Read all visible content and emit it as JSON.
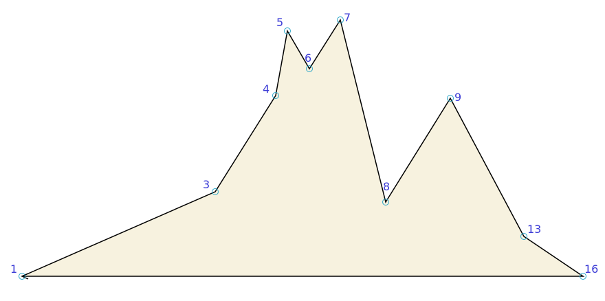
{
  "diagram": {
    "type": "polygon",
    "colors": {
      "fill": "#f7f2df",
      "stroke": "#000000",
      "vertex_marker": "#2aa6c8",
      "label": "#3b3bd6"
    },
    "vertices": [
      {
        "label": "1"
      },
      {
        "label": "3"
      },
      {
        "label": "4"
      },
      {
        "label": "5"
      },
      {
        "label": "6"
      },
      {
        "label": "7"
      },
      {
        "label": "8"
      },
      {
        "label": "9"
      },
      {
        "label": "13"
      },
      {
        "label": "16"
      }
    ]
  }
}
